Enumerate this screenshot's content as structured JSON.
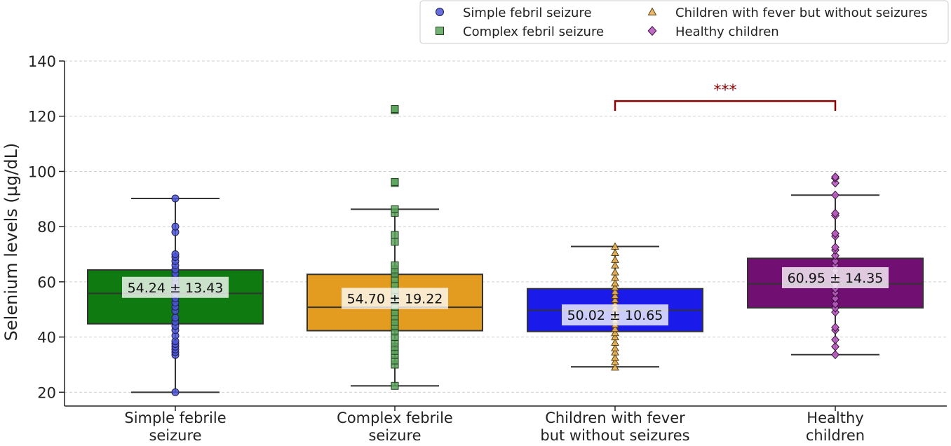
{
  "chart_data": {
    "type": "box",
    "ylabel": "Selenium levels (µg/dL)",
    "xlabel": "",
    "ylim": [
      15,
      140
    ],
    "yticks": [
      20,
      40,
      60,
      80,
      100,
      120,
      140
    ],
    "grid": "horizontal dashed",
    "legend_position": "top-right",
    "categories": [
      [
        "Simple febrile",
        "seizure"
      ],
      [
        "Complex febrile",
        "seizure"
      ],
      [
        "Children with fever",
        "but without seizures"
      ],
      [
        "Healthy",
        "children"
      ]
    ],
    "series": [
      {
        "name": "Simple febril seizure",
        "marker": "circle",
        "box_color": "#0f7a0f",
        "marker_color": "#4b55d8",
        "whisker_low": 20,
        "q1": 44.8,
        "median": 55.8,
        "q3": 64.3,
        "whisker_high": 90.2,
        "annotation": "54.24 ± 13.43",
        "annotation_y": 58,
        "points": [
          20,
          33.5,
          34.5,
          35.5,
          36.5,
          37.5,
          38.5,
          40.5,
          42.5,
          44,
          45.5,
          47,
          49.5,
          51,
          52.5,
          54,
          55.5,
          57,
          58.5,
          60,
          61.5,
          63,
          64.5,
          66,
          67.5,
          69,
          70,
          78,
          80,
          90.2
        ]
      },
      {
        "name": "Complex febril seizure",
        "marker": "square",
        "box_color": "#e39c1f",
        "marker_color": "#5aa55a",
        "whisker_low": 22.3,
        "q1": 42.3,
        "median": 50.8,
        "q3": 62.7,
        "whisker_high": 86.3,
        "annotation": "54.70 ± 19.22",
        "annotation_y": 54,
        "points": [
          22.3,
          30,
          31.5,
          33.5,
          35,
          36.5,
          38,
          40,
          42,
          44,
          45.5,
          47.5,
          49,
          51,
          53,
          55,
          57,
          59,
          61,
          63,
          64.5,
          66,
          74.5,
          77,
          85,
          86.3,
          95.8,
          96.2,
          122.2,
          122.6
        ]
      },
      {
        "name": "Children with fever but without seizures",
        "marker": "triangle",
        "box_color": "#1a1aeb",
        "marker_color": "#e8b25a",
        "whisker_low": 29.2,
        "q1": 42,
        "median": 49.7,
        "q3": 57.5,
        "whisker_high": 72.8,
        "annotation": "50.02 ± 10.65",
        "annotation_y": 48,
        "points": [
          29,
          31,
          32.5,
          34.5,
          36,
          38,
          40,
          41.5,
          43,
          44.5,
          46,
          47.5,
          49,
          50.5,
          52,
          53.5,
          55,
          56.5,
          58,
          59.5,
          61.5,
          63.5,
          66,
          68,
          70.5,
          72.8
        ]
      },
      {
        "name": "Healthy children",
        "marker": "diamond",
        "box_color": "#720f72",
        "marker_color": "#b85cc0",
        "whisker_low": 33.6,
        "q1": 50.6,
        "median": 59.3,
        "q3": 68.5,
        "whisker_high": 91.4,
        "annotation": "60.95 ± 14.35",
        "annotation_y": 61.5,
        "points": [
          33.6,
          36.5,
          39,
          42.5,
          43.5,
          49,
          50.5,
          52,
          54,
          56,
          57.5,
          59,
          61,
          62.5,
          64,
          66,
          67.5,
          69.5,
          71.5,
          72.5,
          76.5,
          77.5,
          84,
          84.8,
          91.4,
          95.8,
          97.5,
          98
        ]
      }
    ],
    "significance": {
      "label": "***",
      "from_category": 2,
      "to_category": 3,
      "y": 125.5,
      "color": "#8b0000"
    }
  }
}
